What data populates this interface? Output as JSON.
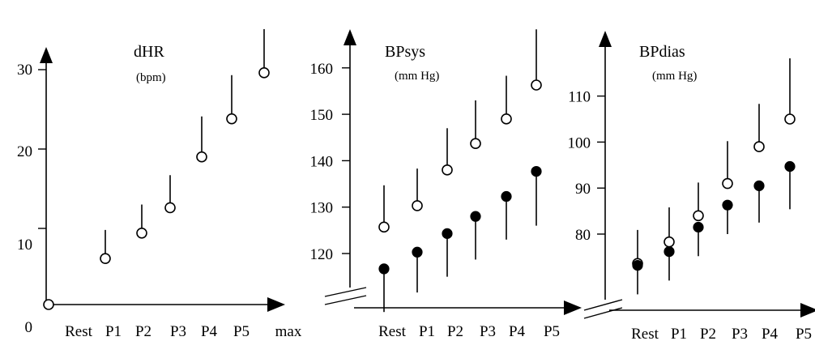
{
  "chart_data": [
    {
      "type": "scatter",
      "title": "dHR",
      "unit": "(bpm)",
      "categories": [
        "Rest",
        "P1",
        "P2",
        "P3",
        "P4",
        "P5",
        "max"
      ],
      "yticks": [
        "0",
        "10",
        "20",
        "30"
      ],
      "ylim": [
        0,
        32
      ],
      "series": [
        {
          "marker": "open",
          "values": [
            0,
            5.8,
            9.0,
            12.2,
            18.6,
            23.4,
            29.2
          ],
          "errors": [
            0,
            3.6,
            3.6,
            4.1,
            5.1,
            5.5,
            5.5
          ]
        }
      ]
    },
    {
      "type": "scatter",
      "title": "BPsys",
      "unit": "(mm Hg)",
      "categories": [
        "Rest",
        "P1",
        "P2",
        "P3",
        "P4",
        "P5"
      ],
      "yticks": [
        "120",
        "130",
        "140",
        "150",
        "160"
      ],
      "ylim": [
        110,
        162
      ],
      "axis_break": true,
      "series": [
        {
          "marker": "open",
          "values": [
            125.7,
            130.3,
            138.0,
            143.7,
            149.0,
            156.3
          ],
          "errors": [
            9,
            8,
            9,
            9.3,
            9.3,
            12
          ]
        },
        {
          "marker": "filled",
          "values": [
            116.7,
            120.3,
            124.3,
            128.0,
            132.3,
            137.7
          ],
          "errors": [
            9.3,
            8.7,
            9.3,
            9.3,
            9.3,
            11.7
          ]
        }
      ]
    },
    {
      "type": "scatter",
      "title": "BPdias",
      "unit": "(mm Hg)",
      "categories": [
        "Rest",
        "P1",
        "P2",
        "P3",
        "P4",
        "P5"
      ],
      "yticks": [
        "80",
        "90",
        "100",
        "110"
      ],
      "ylim": [
        70,
        115
      ],
      "axis_break": true,
      "series": [
        {
          "marker": "open",
          "values": [
            73.6,
            78.3,
            84.0,
            91.0,
            99.0,
            105.0
          ],
          "errors": [
            7.3,
            7.5,
            7.2,
            9.2,
            9.3,
            13.2
          ]
        },
        {
          "marker": "filled",
          "values": [
            73.2,
            76.2,
            81.5,
            86.3,
            90.5,
            94.7
          ],
          "errors": [
            6.3,
            6.3,
            6.3,
            6.3,
            8.0,
            9.3
          ]
        }
      ]
    }
  ]
}
